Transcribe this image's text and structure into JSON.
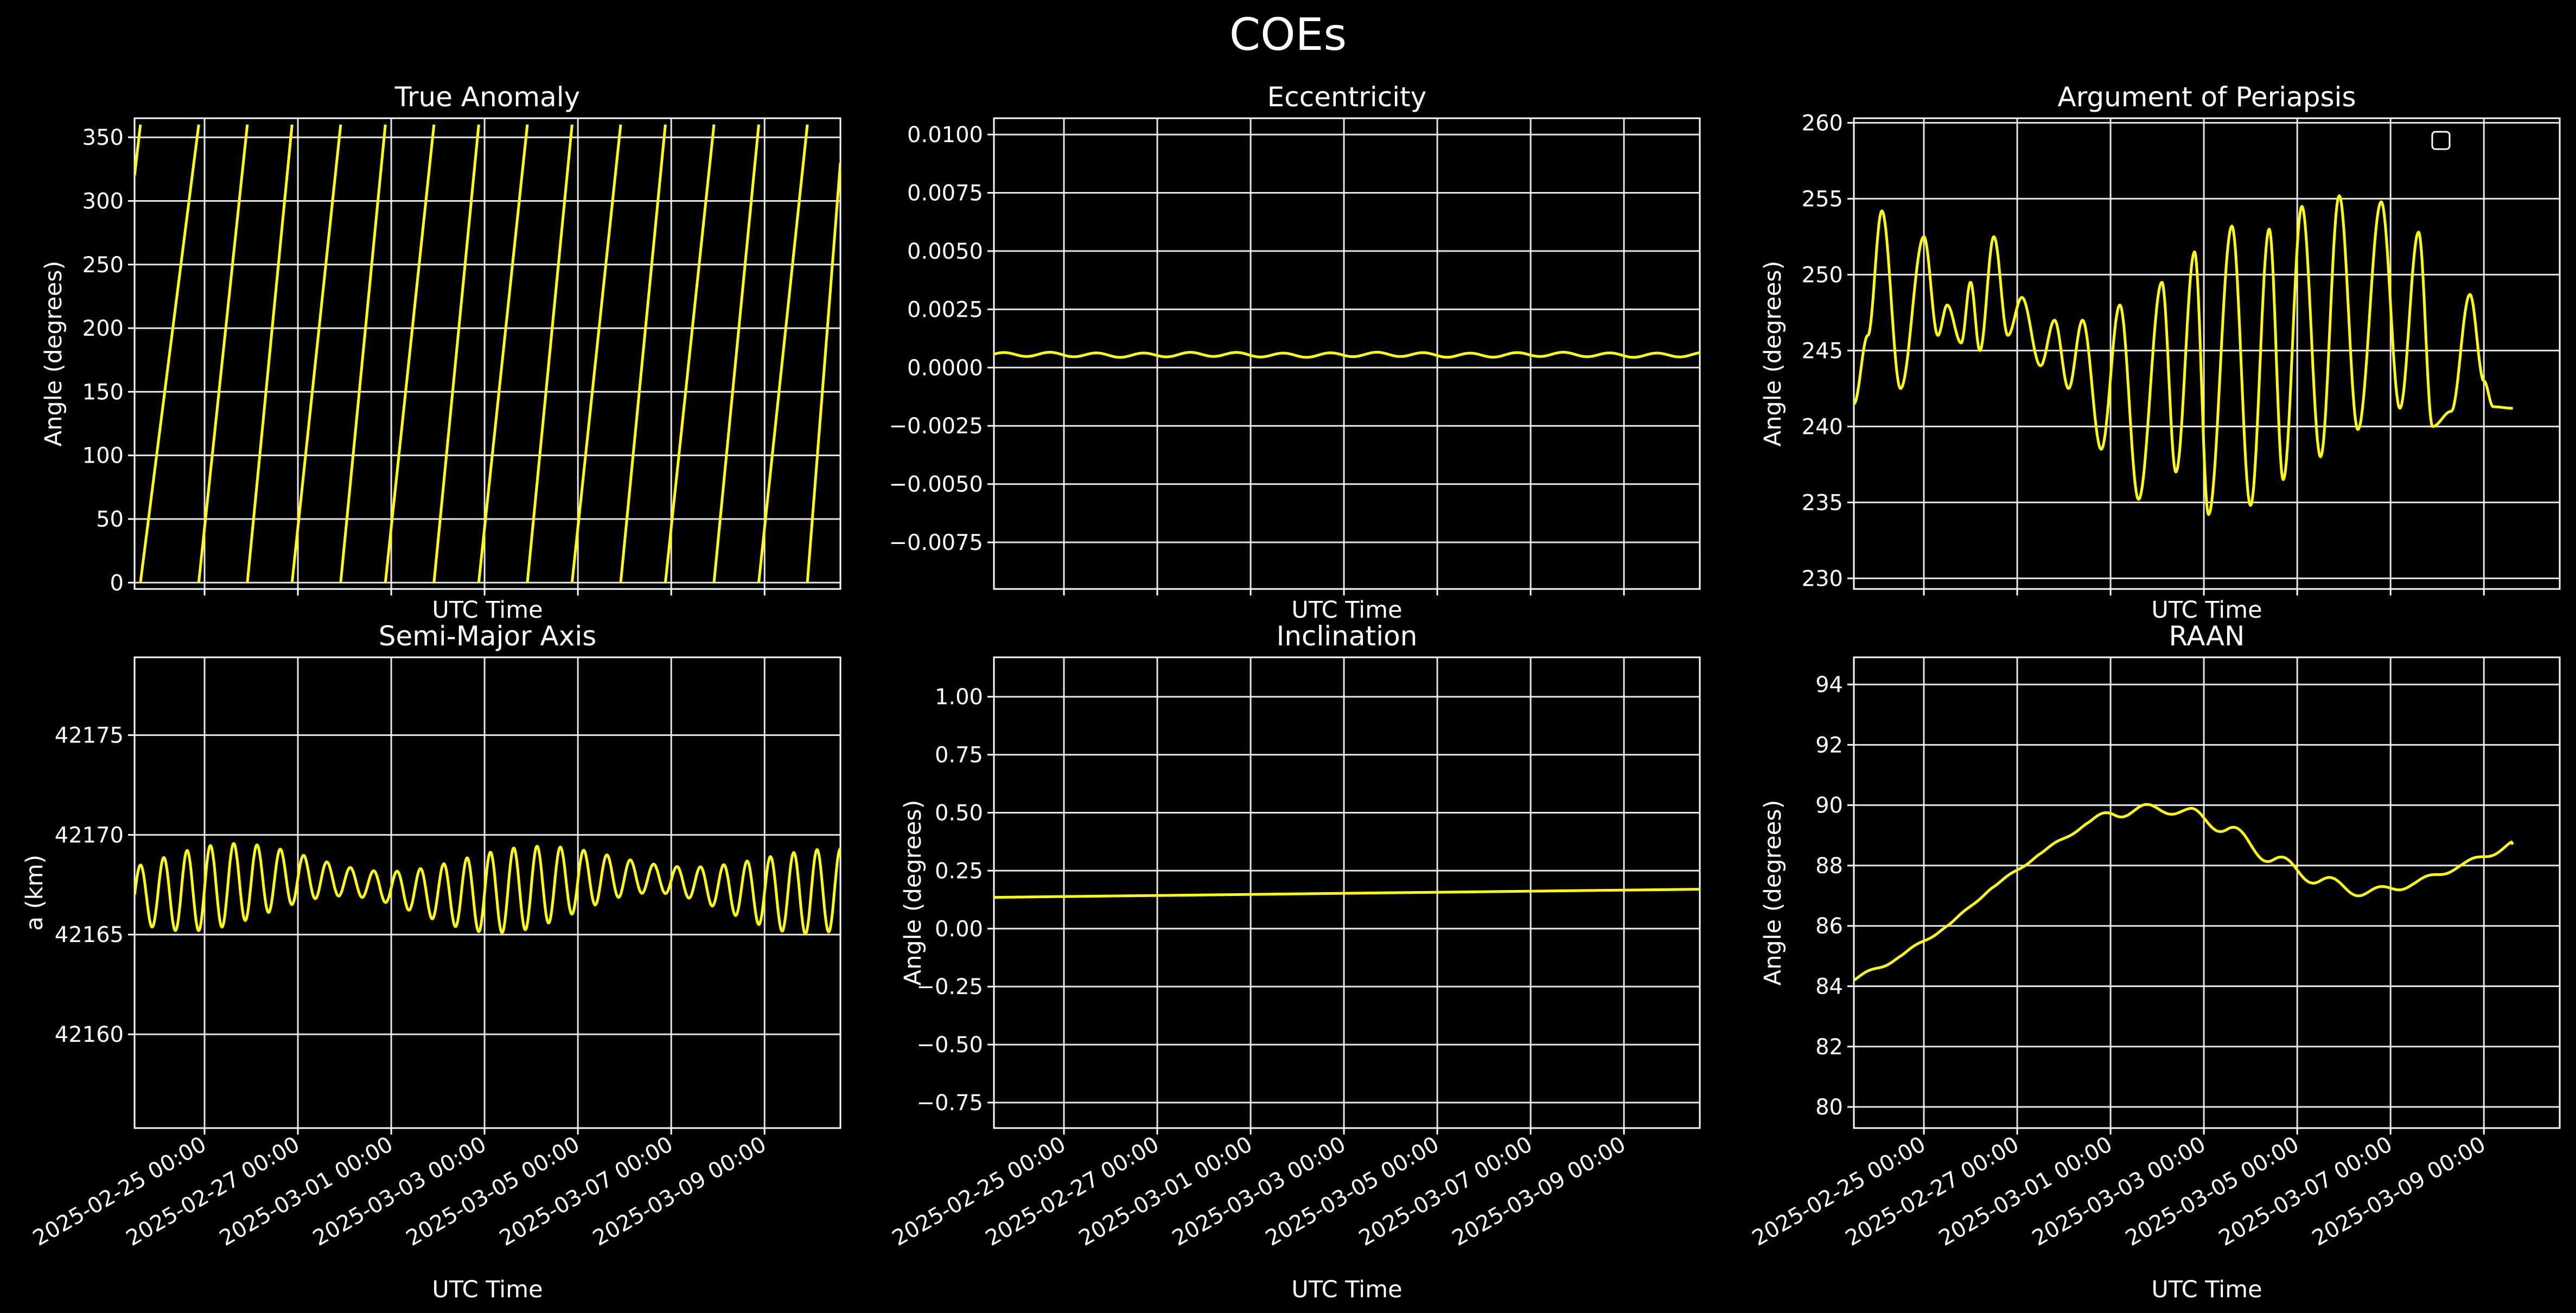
{
  "figure": {
    "title": "COEs",
    "background": "#000000",
    "foreground": "#ffffff",
    "line_color": "#ffff00"
  },
  "chart_data": [
    {
      "type": "line",
      "title": "True Anomaly",
      "xlabel": "UTC Time",
      "ylabel": "Angle (degrees)",
      "xlim": [
        "2025-02-23T12:00",
        "2025-03-10T15:00"
      ],
      "ylim": [
        -5,
        365
      ],
      "yticks": [
        0,
        50,
        100,
        150,
        200,
        250,
        300,
        350
      ],
      "ytick_labels": [
        "0",
        "50",
        "100",
        "150",
        "200",
        "250",
        "300",
        "350"
      ],
      "grid": true,
      "x_ticklabels_visible": false,
      "series": [
        {
          "wrap_times": [
            "2025-02-23T15:00",
            "2025-02-24T21:00",
            "2025-02-25T22:00",
            "2025-02-26T21:00",
            "2025-02-27T22:00",
            "2025-02-28T21:00",
            "2025-03-01T22:00",
            "2025-03-02T21:00",
            "2025-03-03T22:00",
            "2025-03-04T21:00",
            "2025-03-05T22:00",
            "2025-03-06T21:00",
            "2025-03-07T22:00",
            "2025-03-08T21:00",
            "2025-03-09T22:00"
          ],
          "start_value": 320,
          "end_value": 330
        }
      ]
    },
    {
      "type": "line",
      "title": "Eccentricity",
      "xlabel": "UTC Time",
      "ylabel": "",
      "xlim": [
        "2025-02-23T12:00",
        "2025-03-10T15:00"
      ],
      "ylim": [
        -0.0095,
        0.0107
      ],
      "yticks": [
        -0.0075,
        -0.005,
        -0.0025,
        0,
        0.0025,
        0.005,
        0.0075,
        0.01
      ],
      "ytick_labels": [
        "−0.0075",
        "−0.0050",
        "−0.0025",
        "0.0000",
        "0.0025",
        "0.0050",
        "0.0075",
        "0.0100"
      ],
      "grid": true,
      "x_ticklabels_visible": false,
      "series": [
        {
          "mean": 0.00055,
          "amplitude": 9e-05,
          "period_days": 1.0,
          "phase": 0.3
        }
      ]
    },
    {
      "type": "line",
      "title": "Argument of Periapsis",
      "xlabel": "UTC Time",
      "ylabel": "Angle (degrees)",
      "xlim": [
        "2025-02-23T12:00",
        "2025-03-10T15:00"
      ],
      "ylim": [
        229.3,
        260.3
      ],
      "yticks": [
        230,
        235,
        240,
        245,
        250,
        255,
        260
      ],
      "ytick_labels": [
        "230",
        "235",
        "240",
        "245",
        "250",
        "255",
        "260"
      ],
      "grid": true,
      "x_ticklabels_visible": false,
      "legend": "top-right",
      "series": [
        {
          "peaks": [
            [
              0.0,
              241.5
            ],
            [
              0.3,
              246.0
            ],
            [
              0.6,
              254.2
            ],
            [
              1.0,
              242.5
            ],
            [
              1.5,
              252.5
            ],
            [
              1.8,
              246.0
            ],
            [
              2.0,
              248.0
            ],
            [
              2.3,
              245.5
            ],
            [
              2.5,
              249.5
            ],
            [
              2.7,
              245.0
            ],
            [
              3.0,
              252.5
            ],
            [
              3.3,
              246.0
            ],
            [
              3.6,
              248.5
            ],
            [
              4.0,
              244.0
            ],
            [
              4.3,
              247.0
            ],
            [
              4.6,
              242.5
            ],
            [
              4.9,
              247.0
            ],
            [
              5.3,
              238.5
            ],
            [
              5.7,
              248.0
            ],
            [
              6.1,
              235.2
            ],
            [
              6.6,
              249.5
            ],
            [
              6.9,
              237.0
            ],
            [
              7.3,
              251.5
            ],
            [
              7.6,
              234.2
            ],
            [
              8.1,
              253.2
            ],
            [
              8.5,
              234.8
            ],
            [
              8.9,
              253.0
            ],
            [
              9.2,
              236.5
            ],
            [
              9.6,
              254.5
            ],
            [
              10.0,
              238.0
            ],
            [
              10.4,
              255.2
            ],
            [
              10.8,
              239.8
            ],
            [
              11.3,
              254.8
            ],
            [
              11.7,
              241.2
            ],
            [
              12.1,
              252.8
            ],
            [
              12.4,
              240.0
            ],
            [
              12.8,
              241.0
            ],
            [
              13.2,
              248.7
            ],
            [
              13.5,
              243.0
            ],
            [
              13.7,
              241.3
            ],
            [
              14.12,
              241.2
            ]
          ]
        }
      ]
    },
    {
      "type": "line",
      "title": "Semi-Major Axis",
      "xlabel": "UTC Time",
      "ylabel": "a (km)",
      "xlim": [
        "2025-02-23T12:00",
        "2025-03-10T15:00"
      ],
      "ylim": [
        42155.3,
        42178.9
      ],
      "yticks": [
        42160,
        42165,
        42170,
        42175
      ],
      "ytick_labels": [
        "42160",
        "42165",
        "42170",
        "42175"
      ],
      "grid": true,
      "x_ticklabels_visible": true,
      "series": [
        {
          "mean": 42167.4,
          "amplitude": 1.4,
          "period_days": 0.5,
          "amp_variation": 0.5
        }
      ]
    },
    {
      "type": "line",
      "title": "Inclination",
      "xlabel": "UTC Time",
      "ylabel": "Angle (degrees)",
      "xlim": [
        "2025-02-23T12:00",
        "2025-03-10T15:00"
      ],
      "ylim": [
        -0.86,
        1.17
      ],
      "yticks": [
        -0.75,
        -0.5,
        -0.25,
        0,
        0.25,
        0.5,
        0.75,
        1.0
      ],
      "ytick_labels": [
        "−0.75",
        "−0.50",
        "−0.25",
        "0.00",
        "0.25",
        "0.50",
        "0.75",
        "1.00"
      ],
      "grid": true,
      "x_ticklabels_visible": true,
      "series": [
        {
          "start": 0.135,
          "end": 0.17
        }
      ]
    },
    {
      "type": "line",
      "title": "RAAN",
      "xlabel": "UTC Time",
      "ylabel": "Angle (degrees)",
      "xlim": [
        "2025-02-23T12:00",
        "2025-03-10T15:00"
      ],
      "ylim": [
        79.3,
        94.9
      ],
      "yticks": [
        80,
        82,
        84,
        86,
        88,
        90,
        92,
        94
      ],
      "ytick_labels": [
        "80",
        "82",
        "84",
        "86",
        "88",
        "90",
        "92",
        "94"
      ],
      "grid": true,
      "x_ticklabels_visible": true,
      "series": [
        {
          "points": [
            [
              0.0,
              84.2
            ],
            [
              1.0,
              85.0
            ],
            [
              2.0,
              86.0
            ],
            [
              3.0,
              87.3
            ],
            [
              4.0,
              88.4
            ],
            [
              5.0,
              89.4
            ],
            [
              5.6,
              89.75
            ],
            [
              6.5,
              89.9
            ],
            [
              7.2,
              89.75
            ],
            [
              8.0,
              89.2
            ],
            [
              9.0,
              88.2
            ],
            [
              10.0,
              87.5
            ],
            [
              11.0,
              87.1
            ],
            [
              12.0,
              87.4
            ],
            [
              13.0,
              88.0
            ],
            [
              14.12,
              88.7
            ]
          ],
          "wobble": 0.15
        }
      ]
    }
  ],
  "x_axis": {
    "ticks": [
      "2025-02-25T00:00",
      "2025-02-27T00:00",
      "2025-03-01T00:00",
      "2025-03-03T00:00",
      "2025-03-05T00:00",
      "2025-03-07T00:00",
      "2025-03-09T00:00"
    ],
    "tick_labels": [
      "2025-02-25 00:00",
      "2025-02-27 00:00",
      "2025-03-01 00:00",
      "2025-03-03 00:00",
      "2025-03-05 00:00",
      "2025-03-07 00:00",
      "2025-03-09 00:00"
    ]
  }
}
